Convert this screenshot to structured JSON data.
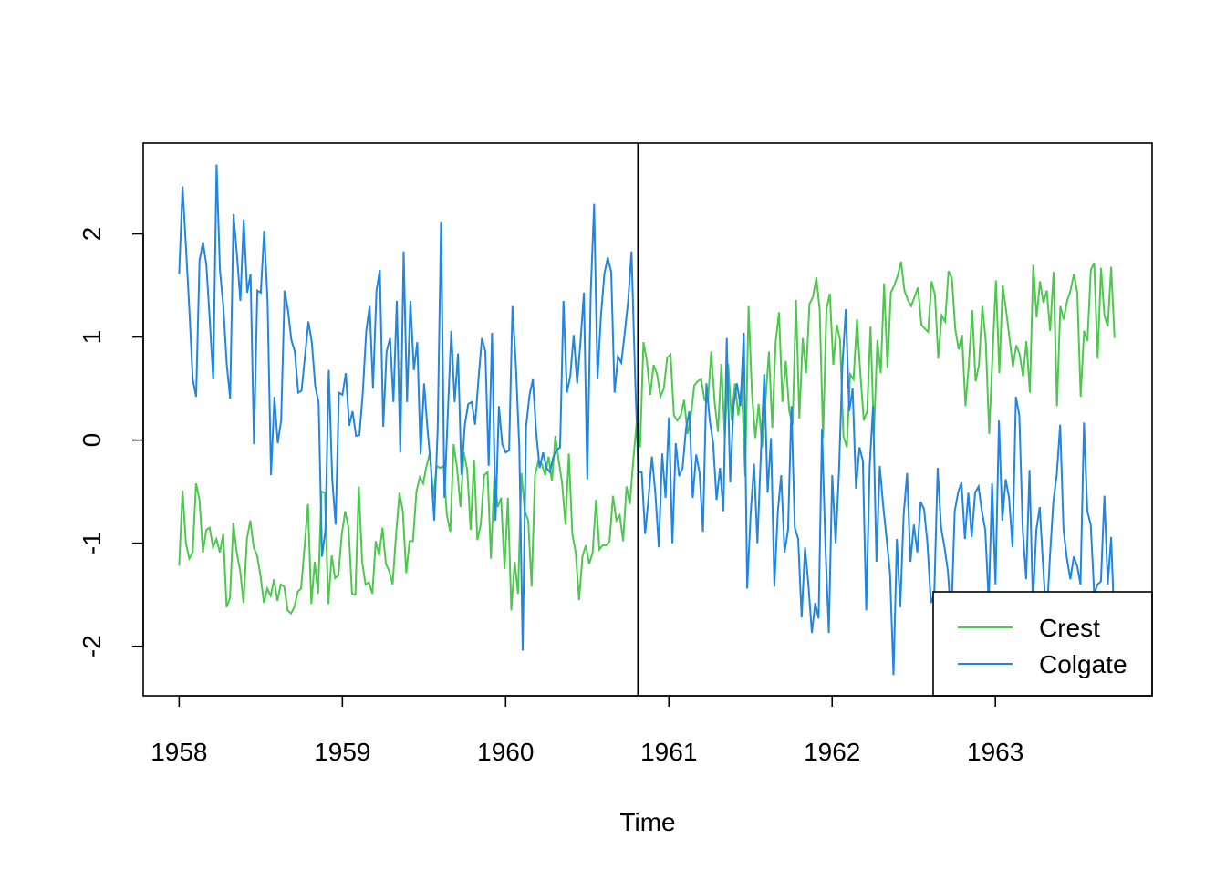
{
  "chart_data": {
    "type": "line",
    "title": "",
    "xlabel": "Time",
    "ylabel": "",
    "xlim": [
      1957.78,
      1963.96
    ],
    "ylim": [
      -2.48,
      2.88
    ],
    "x_ticks": [
      "1958",
      "1959",
      "1960",
      "1961",
      "1962",
      "1963"
    ],
    "y_ticks": [
      "-2",
      "-1",
      "0",
      "1",
      "2"
    ],
    "grid": false,
    "legend_position": "bottom-right",
    "vline_x": 1960.81,
    "series": [
      {
        "name": "Crest",
        "color": "#4cc94c",
        "x_start": 1958.0,
        "x_end": 1963.73,
        "values": [
          -1.22,
          -0.49,
          -1.0,
          -1.15,
          -1.09,
          -0.42,
          -0.58,
          -1.09,
          -0.87,
          -0.85,
          -1.04,
          -0.96,
          -1.09,
          -0.91,
          -1.62,
          -1.53,
          -0.8,
          -1.09,
          -1.27,
          -1.58,
          -0.96,
          -0.78,
          -1.04,
          -1.12,
          -1.31,
          -1.58,
          -1.44,
          -1.51,
          -1.35,
          -1.56,
          -1.4,
          -1.42,
          -1.65,
          -1.68,
          -1.62,
          -1.47,
          -1.44,
          -1.04,
          -0.62,
          -1.59,
          -1.18,
          -1.49,
          -0.5,
          -0.51,
          -1.59,
          -1.12,
          -1.34,
          -1.31,
          -0.91,
          -0.69,
          -0.85,
          -1.49,
          -1.5,
          -0.45,
          -1.18,
          -1.4,
          -1.38,
          -1.49,
          -0.98,
          -1.12,
          -0.85,
          -1.2,
          -1.27,
          -1.4,
          -0.91,
          -0.51,
          -0.69,
          -1.29,
          -0.98,
          -0.98,
          -0.5,
          -0.36,
          -0.42,
          -0.25,
          -0.12,
          -0.56,
          -0.25,
          -0.27,
          -0.25,
          -0.73,
          -0.89,
          -0.04,
          -0.27,
          -0.65,
          -0.12,
          -0.29,
          -0.87,
          -0.19,
          -0.97,
          -0.82,
          -0.34,
          -0.31,
          -1.15,
          -0.34,
          -0.65,
          -0.56,
          -1.25,
          -0.56,
          -1.65,
          -1.18,
          -1.49,
          -0.32,
          -0.69,
          -0.78,
          -1.42,
          -0.34,
          -0.2,
          -0.23,
          -0.34,
          -0.16,
          -0.4,
          0.04,
          -0.2,
          -0.42,
          -0.82,
          -0.13,
          -0.91,
          -1.09,
          -1.55,
          -1.13,
          -1.02,
          -1.2,
          -1.09,
          -0.58,
          -1.06,
          -1.02,
          -1.02,
          -0.98,
          -0.54,
          -0.78,
          -0.73,
          -0.98,
          -0.45,
          -0.62,
          -0.2,
          0.18,
          -0.07,
          0.95,
          0.77,
          0.44,
          0.73,
          0.64,
          0.42,
          0.5,
          0.8,
          0.83,
          0.24,
          0.19,
          0.24,
          0.39,
          0.06,
          0.24,
          0.53,
          0.57,
          0.59,
          0.39,
          0.37,
          0.86,
          0.37,
          0.08,
          0.74,
          0.02,
          0.74,
          0.19,
          0.55,
          0.24,
          0.55,
          -0.35,
          1.3,
          0.46,
          0.02,
          0.35,
          -0.07,
          0.37,
          0.86,
          0.12,
          0.95,
          1.24,
          0.37,
          0.77,
          0.28,
          0.15,
          1.36,
          0.21,
          0.99,
          0.65,
          1.32,
          1.39,
          1.58,
          1.26,
          0.02,
          1.27,
          1.42,
          0.73,
          1.12,
          0.97,
          0.04,
          -0.07,
          0.64,
          0.59,
          1.17,
          0.64,
          0.19,
          0.28,
          1.1,
          0.06,
          0.97,
          0.65,
          1.52,
          0.7,
          1.43,
          1.5,
          1.59,
          1.73,
          1.45,
          1.36,
          1.3,
          1.39,
          1.48,
          1.12,
          1.08,
          1.05,
          1.54,
          1.41,
          0.79,
          1.21,
          1.15,
          1.64,
          1.57,
          1.08,
          0.88,
          1.02,
          0.33,
          0.74,
          1.26,
          0.57,
          0.73,
          1.3,
          0.95,
          0.06,
          0.83,
          1.55,
          0.65,
          1.5,
          1.26,
          0.99,
          0.71,
          0.92,
          0.83,
          0.62,
          0.96,
          0.46,
          1.7,
          1.19,
          1.54,
          1.33,
          1.45,
          1.06,
          1.63,
          0.33,
          1.3,
          1.17,
          1.35,
          1.45,
          1.61,
          1.43,
          0.42,
          1.06,
          0.96,
          1.65,
          1.72,
          0.79,
          1.67,
          1.21,
          1.1,
          1.68,
          0.99
        ]
      },
      {
        "name": "Colgate",
        "color": "#2086e0",
        "x_start": 1958.0,
        "x_end": 1963.73,
        "values": [
          1.61,
          2.46,
          1.88,
          1.26,
          0.59,
          0.42,
          1.74,
          1.92,
          1.7,
          1.17,
          0.59,
          2.67,
          1.65,
          1.3,
          0.73,
          0.4,
          2.19,
          1.79,
          1.35,
          2.14,
          1.43,
          1.61,
          -0.04,
          1.45,
          1.43,
          2.03,
          1.35,
          -0.34,
          0.42,
          -0.03,
          0.19,
          1.45,
          1.26,
          0.97,
          0.86,
          0.46,
          0.48,
          0.81,
          1.15,
          0.95,
          0.53,
          0.36,
          -1.13,
          -0.87,
          0.68,
          -0.38,
          -0.82,
          0.46,
          0.44,
          0.65,
          0.14,
          0.28,
          0.04,
          0.05,
          0.46,
          1.06,
          1.3,
          0.5,
          1.45,
          1.65,
          0.13,
          0.86,
          0.99,
          0.37,
          1.35,
          -0.12,
          1.83,
          0.37,
          1.35,
          0.68,
          0.95,
          -0.14,
          0.55,
          0.11,
          -0.25,
          -0.78,
          0.11,
          2.12,
          -0.56,
          0.28,
          1.06,
          0.37,
          0.84,
          -0.34,
          0.15,
          0.35,
          0.37,
          0.15,
          0.59,
          0.99,
          0.86,
          -0.25,
          1.04,
          -0.78,
          0.33,
          -0.04,
          -0.12,
          -0.1,
          1.3,
          0.73,
          -0.07,
          -2.04,
          0.13,
          0.44,
          0.59,
          0.06,
          -0.27,
          -0.12,
          -0.27,
          -0.31,
          -0.16,
          -0.1,
          -0.07,
          1.35,
          0.46,
          0.62,
          1.02,
          0.55,
          0.96,
          1.43,
          -0.38,
          1.43,
          2.29,
          0.59,
          1.21,
          1.61,
          1.77,
          1.63,
          0.46,
          0.81,
          0.75,
          1.04,
          1.35,
          1.83,
          0.65,
          -0.31,
          -0.31,
          -0.91,
          -0.56,
          -0.16,
          -0.51,
          -1.04,
          -0.13,
          -0.56,
          0.22,
          -1.0,
          -0.03,
          -0.35,
          -0.27,
          0.11,
          0.28,
          -0.56,
          -0.14,
          -0.32,
          -0.89,
          0.55,
          0.19,
          -0.03,
          -0.58,
          -0.27,
          -0.69,
          0.99,
          -0.41,
          0.33,
          0.55,
          0.33,
          1.04,
          -1.44,
          -0.73,
          -0.23,
          -1.0,
          -0.16,
          0.64,
          -0.51,
          0.02,
          -1.42,
          -0.69,
          -0.34,
          -1.09,
          -0.87,
          0.33,
          -0.85,
          -0.96,
          -1.72,
          -1.04,
          -1.4,
          -1.87,
          -1.58,
          -1.73,
          0.11,
          -1.04,
          -1.87,
          -0.34,
          -1.0,
          -0.29,
          0.73,
          1.27,
          0.28,
          0.5,
          -0.47,
          -0.07,
          -0.2,
          -1.65,
          -0.25,
          0.33,
          -1.18,
          -0.25,
          -0.65,
          -0.96,
          -1.29,
          -2.28,
          -0.96,
          -1.62,
          -0.73,
          -0.32,
          -1.18,
          -0.82,
          -1.09,
          -0.6,
          -0.67,
          -1.0,
          -1.58,
          -1.49,
          -0.27,
          -0.85,
          -1.04,
          -1.27,
          -1.75,
          -0.69,
          -0.51,
          -0.41,
          -0.96,
          -0.51,
          -0.94,
          -0.51,
          -0.45,
          -0.69,
          -0.87,
          -1.58,
          -0.42,
          -1.4,
          0.19,
          -0.78,
          -0.38,
          -0.56,
          -1.04,
          0.42,
          0.24,
          -0.87,
          -1.35,
          -0.29,
          -1.58,
          -0.87,
          -0.65,
          -1.22,
          -1.75,
          -1.13,
          -0.6,
          -0.34,
          0.15,
          -0.87,
          -1.15,
          -1.35,
          -1.13,
          -1.22,
          -1.4,
          0.17,
          -0.69,
          -0.82,
          -1.49,
          -1.4,
          -1.37,
          -0.54,
          -1.4,
          -0.94,
          -1.84
        ]
      }
    ]
  }
}
